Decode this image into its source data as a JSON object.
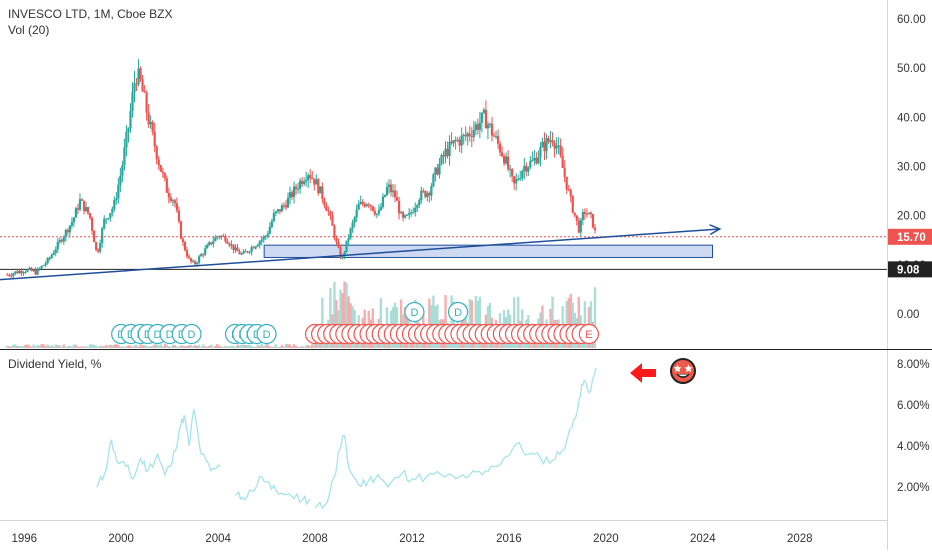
{
  "header": {
    "symbol_line": "INVESCO LTD, 1M, Cboe BZX",
    "volume_label": "Vol (20)",
    "yield_label": "Dividend Yield, %"
  },
  "colors": {
    "up": "#26a69a",
    "down": "#ef5350",
    "trendline": "#1f4e9a",
    "zone_fill": "#c5d4f0",
    "zone_stroke": "#1f4e9a",
    "last_price_line": "#ef5350",
    "support_line": "#222222",
    "yield_line": "#a6e3ea",
    "volume_up": "#a3d9d3",
    "volume_down": "#f5a5a5",
    "annotation_arrow": "#ff1a1a"
  },
  "annotations": {
    "arrow": "left-arrow-icon",
    "emoji": "star-struck-face-icon"
  },
  "chart_data": [
    {
      "type": "candlestick",
      "title": "INVESCO LTD, 1M, Cboe BZX",
      "x_axis": {
        "kind": "date",
        "ticks": [
          "1996",
          "2000",
          "2004",
          "2008",
          "2012",
          "2016",
          "2020",
          "2024",
          "2028"
        ],
        "range": [
          1995.0,
          2031.6
        ]
      },
      "y_axis": {
        "ticks": [
          "0.00",
          "10.00",
          "20.00",
          "30.00",
          "40.00",
          "50.00",
          "60.00"
        ],
        "range": [
          -7,
          63.5
        ],
        "position": "right"
      },
      "grid": false,
      "price_path": [
        [
          1995.3,
          8.0
        ],
        [
          1996.0,
          9.0
        ],
        [
          1996.5,
          8.5
        ],
        [
          1997.0,
          11.0
        ],
        [
          1997.5,
          15.0
        ],
        [
          1998.0,
          19.0
        ],
        [
          1998.3,
          23.0
        ],
        [
          1998.7,
          20.0
        ],
        [
          1999.0,
          12.0
        ],
        [
          1999.3,
          19.0
        ],
        [
          1999.7,
          22.0
        ],
        [
          2000.0,
          29.0
        ],
        [
          2000.3,
          38.0
        ],
        [
          2000.6,
          49.0
        ],
        [
          2000.8,
          47.0
        ],
        [
          2001.2,
          38.0
        ],
        [
          2001.6,
          30.0
        ],
        [
          2001.9,
          25.0
        ],
        [
          2002.2,
          23.0
        ],
        [
          2002.5,
          15.0
        ],
        [
          2002.8,
          11.0
        ],
        [
          2003.0,
          10.0
        ],
        [
          2003.3,
          12.0
        ],
        [
          2003.7,
          14.5
        ],
        [
          2004.0,
          16.0
        ],
        [
          2004.3,
          15.5
        ],
        [
          2004.7,
          13.0
        ],
        [
          2005.0,
          12.0
        ],
        [
          2005.5,
          14.0
        ],
        [
          2006.0,
          16.0
        ],
        [
          2006.3,
          20.0
        ],
        [
          2006.7,
          22.0
        ],
        [
          2007.0,
          24.0
        ],
        [
          2007.4,
          27.0
        ],
        [
          2007.7,
          29.0
        ],
        [
          2008.0,
          27.0
        ],
        [
          2008.3,
          24.0
        ],
        [
          2008.6,
          20.0
        ],
        [
          2008.9,
          14.0
        ],
        [
          2009.1,
          11.0
        ],
        [
          2009.4,
          16.0
        ],
        [
          2009.8,
          22.0
        ],
        [
          2010.2,
          23.0
        ],
        [
          2010.6,
          20.0
        ],
        [
          2011.0,
          26.0
        ],
        [
          2011.3,
          24.0
        ],
        [
          2011.6,
          19.0
        ],
        [
          2011.9,
          20.0
        ],
        [
          2012.3,
          24.0
        ],
        [
          2012.7,
          25.0
        ],
        [
          2013.0,
          29.0
        ],
        [
          2013.4,
          33.0
        ],
        [
          2013.8,
          35.0
        ],
        [
          2014.2,
          36.0
        ],
        [
          2014.6,
          38.0
        ],
        [
          2015.0,
          40.0
        ],
        [
          2015.4,
          36.0
        ],
        [
          2015.8,
          32.0
        ],
        [
          2016.2,
          26.0
        ],
        [
          2016.6,
          30.0
        ],
        [
          2017.0,
          31.0
        ],
        [
          2017.4,
          34.0
        ],
        [
          2017.8,
          36.0
        ],
        [
          2018.0,
          34.0
        ],
        [
          2018.3,
          28.0
        ],
        [
          2018.6,
          22.0
        ],
        [
          2018.9,
          17.0
        ],
        [
          2019.1,
          21.0
        ],
        [
          2019.4,
          19.5
        ],
        [
          2019.6,
          15.7
        ]
      ],
      "last_price": 15.7,
      "last_price_label": "15.70",
      "support_level": 9.08,
      "support_label": "9.08",
      "trendline": {
        "from": [
          1995.0,
          7.0
        ],
        "to": [
          2024.7,
          17.3
        ]
      },
      "zone": {
        "x": [
          2005.9,
          2024.4
        ],
        "y": [
          11.5,
          14.0
        ]
      }
    },
    {
      "type": "bar",
      "name": "Vol (20)",
      "description": "monthly volume histogram, pane overlay at bottom of price chart",
      "x_range": [
        1995.3,
        2019.6
      ]
    },
    {
      "type": "line",
      "name": "Dividend Yield, %",
      "y_axis": {
        "ticks": [
          "2.00%",
          "4.00%",
          "6.00%",
          "8.00%"
        ],
        "range": [
          0.5,
          9.0
        ],
        "position": "right"
      },
      "segments": [
        [
          [
            1999.0,
            2.0
          ],
          [
            1999.3,
            2.6
          ],
          [
            1999.6,
            4.3
          ],
          [
            1999.8,
            3.3
          ],
          [
            2000.2,
            3.0
          ],
          [
            2000.5,
            2.4
          ],
          [
            2000.8,
            3.4
          ],
          [
            2001.1,
            2.8
          ],
          [
            2001.5,
            3.6
          ],
          [
            2001.8,
            2.6
          ],
          [
            2002.1,
            3.2
          ],
          [
            2002.4,
            4.8
          ],
          [
            2002.6,
            5.5
          ],
          [
            2002.8,
            4.0
          ],
          [
            2003.0,
            5.8
          ],
          [
            2003.3,
            3.6
          ],
          [
            2003.7,
            2.8
          ],
          [
            2004.1,
            3.0
          ]
        ],
        [
          [
            2004.7,
            1.6
          ],
          [
            2005.0,
            1.5
          ],
          [
            2005.4,
            1.8
          ],
          [
            2005.8,
            2.5
          ],
          [
            2006.2,
            1.9
          ],
          [
            2006.6,
            1.7
          ],
          [
            2007.0,
            1.6
          ],
          [
            2007.5,
            1.4
          ],
          [
            2007.8,
            1.4
          ]
        ],
        [
          [
            2008.0,
            1.0
          ],
          [
            2008.4,
            1.1
          ],
          [
            2008.8,
            2.5
          ],
          [
            2009.0,
            3.8
          ],
          [
            2009.2,
            4.5
          ],
          [
            2009.4,
            2.9
          ],
          [
            2009.8,
            2.1
          ],
          [
            2010.2,
            2.3
          ],
          [
            2010.6,
            2.6
          ],
          [
            2011.0,
            2.0
          ],
          [
            2011.6,
            2.7
          ],
          [
            2012.0,
            2.4
          ],
          [
            2012.6,
            2.5
          ],
          [
            2013.2,
            2.6
          ],
          [
            2013.8,
            2.4
          ],
          [
            2014.4,
            2.6
          ],
          [
            2014.9,
            2.6
          ],
          [
            2015.4,
            3.0
          ],
          [
            2015.9,
            3.5
          ],
          [
            2016.3,
            4.1
          ],
          [
            2016.8,
            3.6
          ],
          [
            2017.3,
            3.4
          ],
          [
            2017.8,
            3.3
          ],
          [
            2018.2,
            3.8
          ],
          [
            2018.6,
            4.9
          ],
          [
            2018.9,
            6.3
          ],
          [
            2019.1,
            7.2
          ],
          [
            2019.3,
            6.6
          ],
          [
            2019.6,
            7.8
          ]
        ]
      ]
    }
  ],
  "dividend_markers": {
    "top_row_labels": [
      "D",
      "D",
      "D",
      "D",
      "D",
      "D",
      "D",
      "D",
      "D",
      "D",
      "D",
      "D",
      "D"
    ],
    "upper_labels": [
      "D",
      "D"
    ],
    "last_label": "E"
  }
}
